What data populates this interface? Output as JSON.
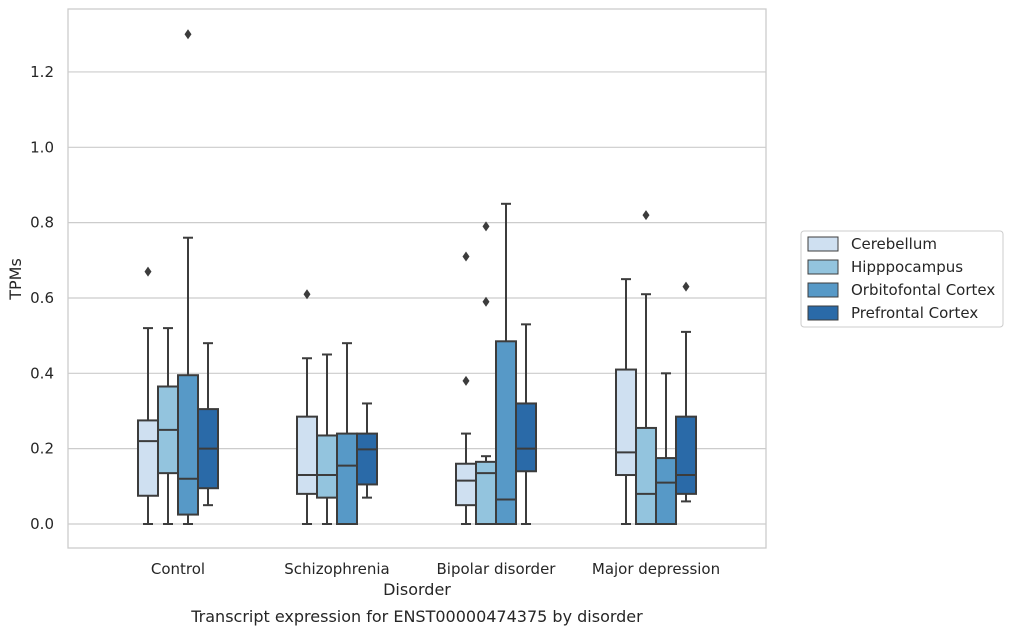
{
  "chart_data": {
    "type": "box",
    "xlabel": "Disorder",
    "ylabel": "TPMs",
    "caption": "Transcript expression for ENST00000474375 by disorder",
    "categories": [
      "Control",
      "Schizophrenia",
      "Bipolar disorder",
      "Major depression"
    ],
    "ylim": [
      -0.063,
      1.37
    ],
    "yticks": [
      "0.0",
      "0.2",
      "0.4",
      "0.6",
      "0.8",
      "1.0",
      "1.2"
    ],
    "ytick_values": [
      0,
      0.2,
      0.4,
      0.6,
      0.8,
      1.0,
      1.2
    ],
    "grid": "horizontal",
    "legend_position": "right-center",
    "series": [
      {
        "name": "Cerebellum",
        "color": "#cfe0f1",
        "boxes": [
          {
            "whislo": 0.0,
            "q1": 0.075,
            "med": 0.22,
            "q3": 0.275,
            "whishi": 0.52,
            "fliers": [
              0.67
            ]
          },
          {
            "whislo": 0.0,
            "q1": 0.08,
            "med": 0.13,
            "q3": 0.285,
            "whishi": 0.44,
            "fliers": [
              0.61
            ]
          },
          {
            "whislo": 0.0,
            "q1": 0.05,
            "med": 0.115,
            "q3": 0.16,
            "whishi": 0.24,
            "fliers": [
              0.38,
              0.71
            ]
          },
          {
            "whislo": 0.0,
            "q1": 0.13,
            "med": 0.19,
            "q3": 0.41,
            "whishi": 0.65,
            "fliers": []
          }
        ]
      },
      {
        "name": "Hipppocampus",
        "color": "#93c4de",
        "boxes": [
          {
            "whislo": 0.0,
            "q1": 0.135,
            "med": 0.25,
            "q3": 0.365,
            "whishi": 0.52,
            "fliers": []
          },
          {
            "whislo": 0.0,
            "q1": 0.07,
            "med": 0.13,
            "q3": 0.235,
            "whishi": 0.45,
            "fliers": []
          },
          {
            "whislo": 0.0,
            "q1": 0.0,
            "med": 0.135,
            "q3": 0.165,
            "whishi": 0.18,
            "fliers": [
              0.59,
              0.79
            ]
          },
          {
            "whislo": 0.0,
            "q1": 0.0,
            "med": 0.08,
            "q3": 0.255,
            "whishi": 0.61,
            "fliers": [
              0.82
            ]
          }
        ]
      },
      {
        "name": "Orbitofontal Cortex",
        "color": "#5799c7",
        "boxes": [
          {
            "whislo": 0.0,
            "q1": 0.025,
            "med": 0.12,
            "q3": 0.395,
            "whishi": 0.76,
            "fliers": [
              1.3
            ]
          },
          {
            "whislo": 0.0,
            "q1": 0.0,
            "med": 0.155,
            "q3": 0.24,
            "whishi": 0.48,
            "fliers": []
          },
          {
            "whislo": 0.0,
            "q1": 0.0,
            "med": 0.065,
            "q3": 0.485,
            "whishi": 0.85,
            "fliers": []
          },
          {
            "whislo": 0.0,
            "q1": 0.0,
            "med": 0.11,
            "q3": 0.175,
            "whishi": 0.4,
            "fliers": []
          }
        ]
      },
      {
        "name": "Prefrontal Cortex",
        "color": "#2a6aa8",
        "boxes": [
          {
            "whislo": 0.05,
            "q1": 0.095,
            "med": 0.2,
            "q3": 0.305,
            "whishi": 0.48,
            "fliers": []
          },
          {
            "whislo": 0.07,
            "q1": 0.105,
            "med": 0.198,
            "q3": 0.24,
            "whishi": 0.32,
            "fliers": []
          },
          {
            "whislo": 0.0,
            "q1": 0.14,
            "med": 0.2,
            "q3": 0.32,
            "whishi": 0.53,
            "fliers": []
          },
          {
            "whislo": 0.06,
            "q1": 0.08,
            "med": 0.13,
            "q3": 0.285,
            "whishi": 0.51,
            "fliers": [
              0.63
            ]
          }
        ]
      }
    ]
  }
}
